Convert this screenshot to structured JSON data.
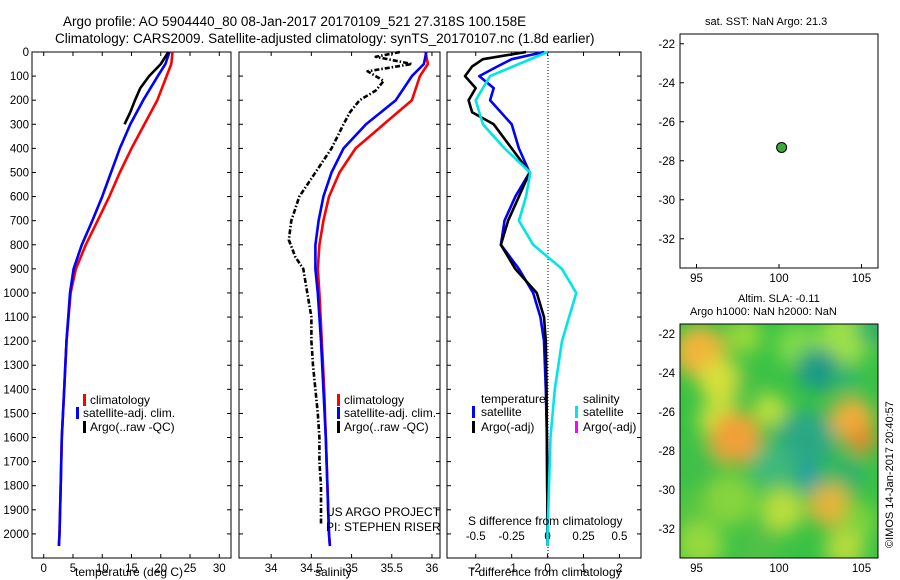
{
  "titles": {
    "line1": "Argo profile: AO 5904440_80 08-Jan-2017 20170109_521 27.318S 100.158E",
    "line2": "Climatology: CARS2009. Satellite-adjusted climatology: synTS_20170107.nc (1.8d earlier)"
  },
  "colors": {
    "climatology": "#ff0000",
    "satellite": "#0000ff",
    "argo": "#000000",
    "satellite_diff": "#00e5e5",
    "argo_adj": "#ff00ff",
    "marker": "#3aaa3a"
  },
  "legends": {
    "climatology": "climatology",
    "satellite_adj": "satellite-adj. clim.",
    "argo_raw": "Argo(..raw -QC)",
    "temperature": "temperature",
    "salinity": "salinity",
    "satellite": "satellite",
    "argo_adj": "Argo(-adj)"
  },
  "annotations": {
    "project": "US ARGO PROJECT",
    "pi": "PI: STEPHEN RISER",
    "sst": "sat. SST: NaN Argo: 21.3",
    "sla": "Altim. SLA: -0.11",
    "heights": "Argo h1000: NaN h2000: NaN",
    "footer": "©IMOS 14-Jan-2017 20:40:57"
  },
  "chart_data": [
    {
      "type": "line",
      "xlabel": "temperature (deg C)",
      "ylim": [
        2100,
        0
      ],
      "xlim": [
        -2,
        32
      ],
      "x_ticks": [
        "0",
        "5",
        "10",
        "15",
        "20",
        "25",
        "30"
      ],
      "y_ticks": [
        "0",
        "100",
        "200",
        "300",
        "400",
        "500",
        "600",
        "700",
        "800",
        "900",
        "1000",
        "1100",
        "1200",
        "1300",
        "1400",
        "1500",
        "1600",
        "1700",
        "1800",
        "1900",
        "2000"
      ],
      "series": [
        {
          "name": "climatology",
          "depth": [
            0,
            50,
            100,
            200,
            300,
            400,
            500,
            600,
            700,
            800,
            900,
            1000,
            1200,
            1400,
            1600,
            1800,
            2000,
            2050
          ],
          "values": [
            22,
            21.8,
            21,
            19.4,
            17.2,
            15,
            13,
            11.2,
            9.2,
            7.2,
            5.5,
            4.6,
            3.9,
            3.5,
            3.1,
            2.9,
            2.7,
            2.6
          ]
        },
        {
          "name": "satellite-adj. clim.",
          "depth": [
            0,
            50,
            100,
            200,
            300,
            400,
            500,
            600,
            700,
            800,
            900,
            1000,
            1200,
            1400,
            1600,
            1800,
            2000,
            2050
          ],
          "values": [
            21.5,
            20.8,
            19.5,
            17,
            14.8,
            13,
            11.5,
            10,
            8.3,
            6.5,
            5.1,
            4.5,
            3.9,
            3.5,
            3.1,
            2.9,
            2.7,
            2.6
          ]
        },
        {
          "name": "Argo(..raw -QC)",
          "depth": [
            0,
            50,
            100,
            150,
            200,
            250,
            300
          ],
          "values": [
            21.3,
            20,
            18,
            16.5,
            15.6,
            14.8,
            13.8
          ]
        }
      ]
    },
    {
      "type": "line",
      "xlabel": "salinity",
      "ylim": [
        2100,
        0
      ],
      "xlim": [
        33.6,
        36.1
      ],
      "x_ticks": [
        "34",
        "34.5",
        "35",
        "35.5",
        "36"
      ],
      "series": [
        {
          "name": "climatology",
          "depth": [
            0,
            50,
            100,
            200,
            300,
            400,
            500,
            600,
            700,
            800,
            900,
            1000,
            1200,
            1400,
            1600,
            1800,
            2000,
            2050
          ],
          "values": [
            35.92,
            35.95,
            35.85,
            35.75,
            35.4,
            35.05,
            34.85,
            34.72,
            34.65,
            34.6,
            34.58,
            34.6,
            34.63,
            34.66,
            34.68,
            34.7,
            34.72,
            34.73
          ]
        },
        {
          "name": "satellite-adj. clim.",
          "depth": [
            0,
            50,
            100,
            200,
            300,
            400,
            500,
            600,
            700,
            800,
            900,
            1000,
            1200,
            1400,
            1600,
            1800,
            2000,
            2050
          ],
          "values": [
            35.93,
            35.9,
            35.75,
            35.55,
            35.18,
            34.9,
            34.75,
            34.65,
            34.59,
            34.55,
            34.55,
            34.58,
            34.62,
            34.65,
            34.68,
            34.7,
            34.72,
            34.73
          ]
        },
        {
          "name": "Argo(..raw -QC)",
          "depth": [
            0,
            20,
            50,
            80,
            120,
            160,
            200,
            250,
            300,
            400,
            500,
            600,
            700,
            780,
            850,
            900,
            1000,
            1100,
            1200,
            1300,
            1400,
            1500,
            1600,
            1700,
            1800,
            1900,
            1960
          ],
          "values": [
            35.6,
            35.3,
            35.75,
            35.2,
            35.4,
            35.3,
            35.1,
            34.98,
            34.9,
            34.75,
            34.55,
            34.35,
            34.25,
            34.22,
            34.3,
            34.4,
            34.45,
            34.5,
            34.5,
            34.52,
            34.55,
            34.58,
            34.6,
            34.6,
            34.62,
            34.62,
            34.62
          ]
        }
      ]
    },
    {
      "type": "line",
      "xlabel": "T difference from climatology",
      "secondary_xlabel": "S difference from climatology",
      "ylim": [
        2100,
        0
      ],
      "xlim": [
        -2.8,
        2.6
      ],
      "x_ticks": [
        "-2",
        "-1",
        "0",
        "1",
        "2"
      ],
      "secondary_ticks": [
        "-0.5",
        "-0.25",
        "0",
        "0.25",
        "0.5"
      ],
      "series": [
        {
          "name": "satellite (temperature)",
          "depth": [
            0,
            30,
            60,
            100,
            150,
            200,
            300,
            400,
            500,
            600,
            700,
            800,
            900,
            1000,
            1100,
            1200,
            1400,
            1600,
            1800,
            2000,
            2050
          ],
          "values": [
            -0.1,
            -1,
            -1.4,
            -1.9,
            -1.5,
            -1.6,
            -1,
            -0.8,
            -0.5,
            -0.9,
            -1.2,
            -1.3,
            -0.8,
            -0.4,
            -0.2,
            -0.1,
            -0.05,
            -0.02,
            -0.01,
            0,
            0
          ]
        },
        {
          "name": "Argo(-adj) (temperature)",
          "depth": [
            0,
            30,
            60,
            100,
            150,
            200,
            250,
            300,
            400,
            500,
            600,
            700,
            800,
            900,
            1000,
            1100,
            1200,
            1400,
            1600,
            1800,
            2000,
            2050
          ],
          "values": [
            -0.6,
            -1.8,
            -2.1,
            -2.3,
            -2,
            -2.2,
            -2.1,
            -1.5,
            -1,
            -0.5,
            -0.8,
            -1.1,
            -1.3,
            -0.9,
            -0.3,
            -0.1,
            -0.05,
            -0.03,
            -0.02,
            -0.01,
            0,
            0
          ]
        },
        {
          "name": "satellite (salinity)",
          "depth": [
            0,
            50,
            100,
            200,
            300,
            400,
            500,
            600,
            700,
            800,
            900,
            1000,
            1100,
            1200,
            1400,
            1600,
            1800,
            2000,
            2050
          ],
          "values": [
            0,
            -0.2,
            -0.4,
            -0.5,
            -0.45,
            -0.3,
            -0.12,
            -0.15,
            -0.2,
            -0.1,
            0.1,
            0.2,
            0.15,
            0.1,
            0.05,
            0.02,
            0.01,
            0,
            0
          ]
        }
      ]
    },
    {
      "type": "scatter",
      "title": "sat. SST: NaN Argo: 21.3",
      "xlim": [
        94,
        106
      ],
      "ylim": [
        -33.5,
        -21.5
      ],
      "x_ticks": [
        "95",
        "100",
        "105"
      ],
      "y_ticks": [
        "-22",
        "-24",
        "-26",
        "-28",
        "-30",
        "-32"
      ],
      "points": [
        {
          "x": 100.158,
          "y": -27.318
        }
      ]
    },
    {
      "type": "heatmap",
      "title": "Altim. SLA: -0.11",
      "subtitle": "Argo h1000: NaN h2000: NaN",
      "xlim": [
        94,
        106
      ],
      "ylim": [
        -33.5,
        -21.5
      ],
      "x_ticks": [
        "95",
        "100",
        "105"
      ],
      "y_ticks": [
        "-22",
        "-24",
        "-26",
        "-28",
        "-30",
        "-32"
      ]
    }
  ]
}
